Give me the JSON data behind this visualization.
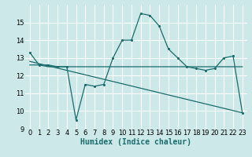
{
  "xlabel": "Humidex (Indice chaleur)",
  "bg_color": "#cce8e8",
  "grid_color": "#ffffff",
  "line_color": "#1a6b6b",
  "xlim": [
    -0.5,
    23.5
  ],
  "ylim": [
    9,
    16
  ],
  "yticks": [
    9,
    10,
    11,
    12,
    13,
    14,
    15
  ],
  "xticks": [
    0,
    1,
    2,
    3,
    4,
    5,
    6,
    7,
    8,
    9,
    10,
    11,
    12,
    13,
    14,
    15,
    16,
    17,
    18,
    19,
    20,
    21,
    22,
    23
  ],
  "line1_x": [
    0,
    1,
    2,
    3,
    4,
    5,
    6,
    7,
    8,
    9,
    10,
    11,
    12,
    13,
    14,
    15,
    16,
    17,
    18,
    19,
    20,
    21,
    22,
    23
  ],
  "line1_y": [
    13.3,
    12.6,
    12.6,
    12.5,
    12.5,
    9.5,
    11.5,
    11.4,
    11.5,
    13.0,
    14.0,
    14.0,
    15.5,
    15.4,
    14.8,
    13.5,
    13.0,
    12.5,
    12.4,
    12.3,
    12.4,
    13.0,
    13.1,
    9.9
  ],
  "line2_x": [
    0,
    1,
    2,
    3,
    4,
    5,
    9,
    10,
    15,
    16,
    17,
    18,
    19,
    20,
    21,
    22,
    23
  ],
  "line2_y": [
    12.6,
    12.6,
    12.5,
    12.5,
    12.5,
    12.5,
    12.5,
    12.5,
    12.5,
    12.5,
    12.5,
    12.5,
    12.5,
    12.5,
    12.5,
    12.5,
    12.5
  ],
  "line3_x": [
    0,
    23
  ],
  "line3_y": [
    12.8,
    9.9
  ],
  "font_size_label": 7,
  "font_size_tick": 6
}
